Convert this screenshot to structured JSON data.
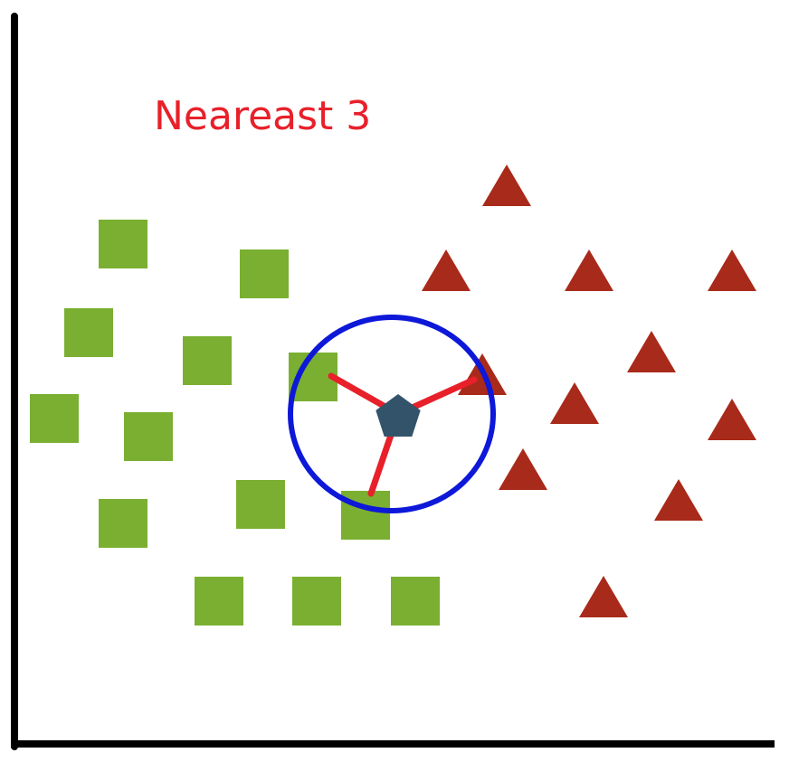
{
  "title": "Neareast 3",
  "colors": {
    "title": "#e8202a",
    "axis": "#000000",
    "square": "#7aaf31",
    "triangle": "#a82a1a",
    "query": "#33536a",
    "circle": "#0d18d8",
    "neighbor_line": "#e8202a"
  },
  "icons": {
    "class_a": "green-square",
    "class_b": "red-triangle",
    "query": "dark-pentagon"
  },
  "k": 3
}
